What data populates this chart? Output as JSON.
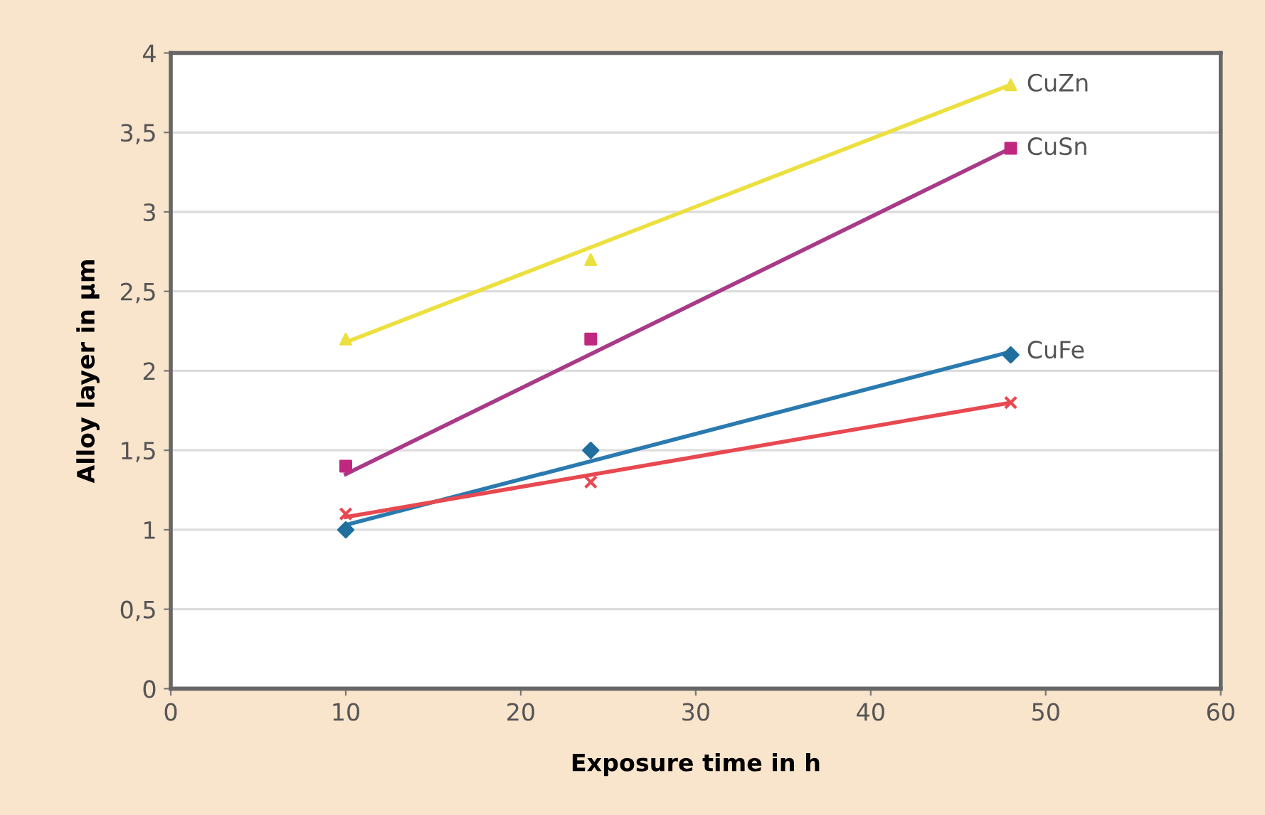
{
  "chart_data": {
    "type": "scatter",
    "xlabel": "Exposure time in h",
    "ylabel": "Alloy layer in µm",
    "xlim": [
      0,
      60
    ],
    "xticks": [
      0,
      10,
      20,
      30,
      40,
      50,
      60
    ],
    "ylim": [
      0,
      4
    ],
    "yticks": [
      0,
      {
        "value": 0.5,
        "label": "0,5"
      },
      1,
      {
        "value": 1.5,
        "label": "1,5"
      },
      2,
      {
        "value": 2.5,
        "label": "2,5"
      },
      3,
      {
        "value": 3.5,
        "label": "3,5"
      },
      4
    ],
    "grid": "y",
    "series": [
      {
        "color": "#ece040",
        "marker": "triangle",
        "x": [
          10,
          24,
          48
        ],
        "values": [
          2.2,
          2.7,
          3.8
        ]
      },
      {
        "color": "#c02880",
        "marker": "square",
        "x": [
          10,
          24,
          48
        ],
        "values": [
          1.4,
          2.2,
          3.4
        ]
      },
      {
        "color": "#1f6f9f",
        "marker": "diamond",
        "x": [
          10,
          24,
          48
        ],
        "values": [
          1.0,
          1.5,
          2.1
        ]
      },
      {
        "color": "#e84850",
        "marker": "cross",
        "x": [
          10,
          24,
          48
        ],
        "values": [
          1.1,
          1.3,
          1.8
        ]
      },
      {
        "type": "line",
        "name": "CuZn",
        "color": "#ece040",
        "x": [
          10,
          48
        ],
        "values": [
          2.18,
          3.8
        ]
      },
      {
        "type": "line",
        "name": "CuSn",
        "color": "#a83a88",
        "x": [
          10,
          48
        ],
        "values": [
          1.35,
          3.4
        ]
      },
      {
        "type": "line",
        "name": "CuFe",
        "color": "#2a7ab0",
        "x": [
          10,
          48
        ],
        "values": [
          1.03,
          2.12
        ]
      },
      {
        "type": "line",
        "color": "#e84850",
        "x": [
          10,
          48
        ],
        "values": [
          1.08,
          1.8
        ]
      }
    ]
  }
}
